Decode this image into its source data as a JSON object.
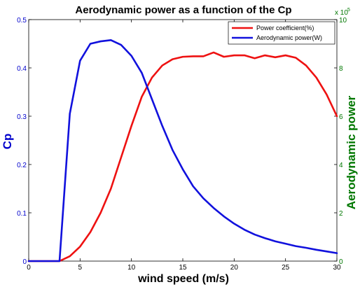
{
  "chart_data": {
    "type": "line",
    "title": "Aerodynamic power as a function of the Cp",
    "xlabel": "wind speed (m/s)",
    "ylabel_left": "Cp",
    "ylabel_right": "Aerodynamic power",
    "right_axis_multiplier": "x 10",
    "right_axis_exponent": "5",
    "xlim": [
      0,
      30
    ],
    "ylim_left": [
      0,
      0.5
    ],
    "ylim_right": [
      0,
      10
    ],
    "x_ticks": [
      "0",
      "5",
      "10",
      "15",
      "20",
      "25",
      "30"
    ],
    "y_left_ticks": [
      "0",
      "0.1",
      "0.2",
      "0.3",
      "0.4",
      "0.5"
    ],
    "y_right_ticks": [
      "0",
      "2",
      "4",
      "6",
      "8",
      "10"
    ],
    "grid": false,
    "legend_position": "top-right",
    "colors": {
      "left_axis": "#0000cc",
      "right_axis": "#007700",
      "series_1": "#ee1111",
      "series_2": "#1111dd"
    },
    "series": [
      {
        "name": "Power coefficient(%)",
        "axis": "left",
        "x": [
          0,
          3,
          4,
          5,
          6,
          7,
          8,
          9,
          10,
          11,
          12,
          13,
          14,
          15,
          16,
          17,
          18,
          19,
          20,
          21,
          22,
          23,
          24,
          25,
          26,
          27,
          28,
          29,
          30
        ],
        "y": [
          0,
          0,
          0.01,
          0.03,
          0.06,
          0.1,
          0.15,
          0.215,
          0.28,
          0.34,
          0.38,
          0.405,
          0.418,
          0.423,
          0.424,
          0.424,
          0.432,
          0.423,
          0.426,
          0.426,
          0.42,
          0.426,
          0.422,
          0.426,
          0.421,
          0.405,
          0.38,
          0.345,
          0.3
        ]
      },
      {
        "name": "Aerodynamic power(W)",
        "axis": "right",
        "x": [
          0,
          3,
          4,
          5,
          6,
          7,
          8,
          9,
          10,
          11,
          12,
          13,
          14,
          15,
          16,
          17,
          18,
          19,
          20,
          21,
          22,
          23,
          24,
          25,
          26,
          27,
          28,
          29,
          30
        ],
        "y": [
          0,
          0,
          6.1,
          8.3,
          9.0,
          9.1,
          9.15,
          8.95,
          8.5,
          7.8,
          6.7,
          5.6,
          4.6,
          3.8,
          3.1,
          2.6,
          2.2,
          1.85,
          1.55,
          1.3,
          1.1,
          0.95,
          0.82,
          0.72,
          0.62,
          0.55,
          0.47,
          0.4,
          0.33
        ]
      }
    ]
  }
}
